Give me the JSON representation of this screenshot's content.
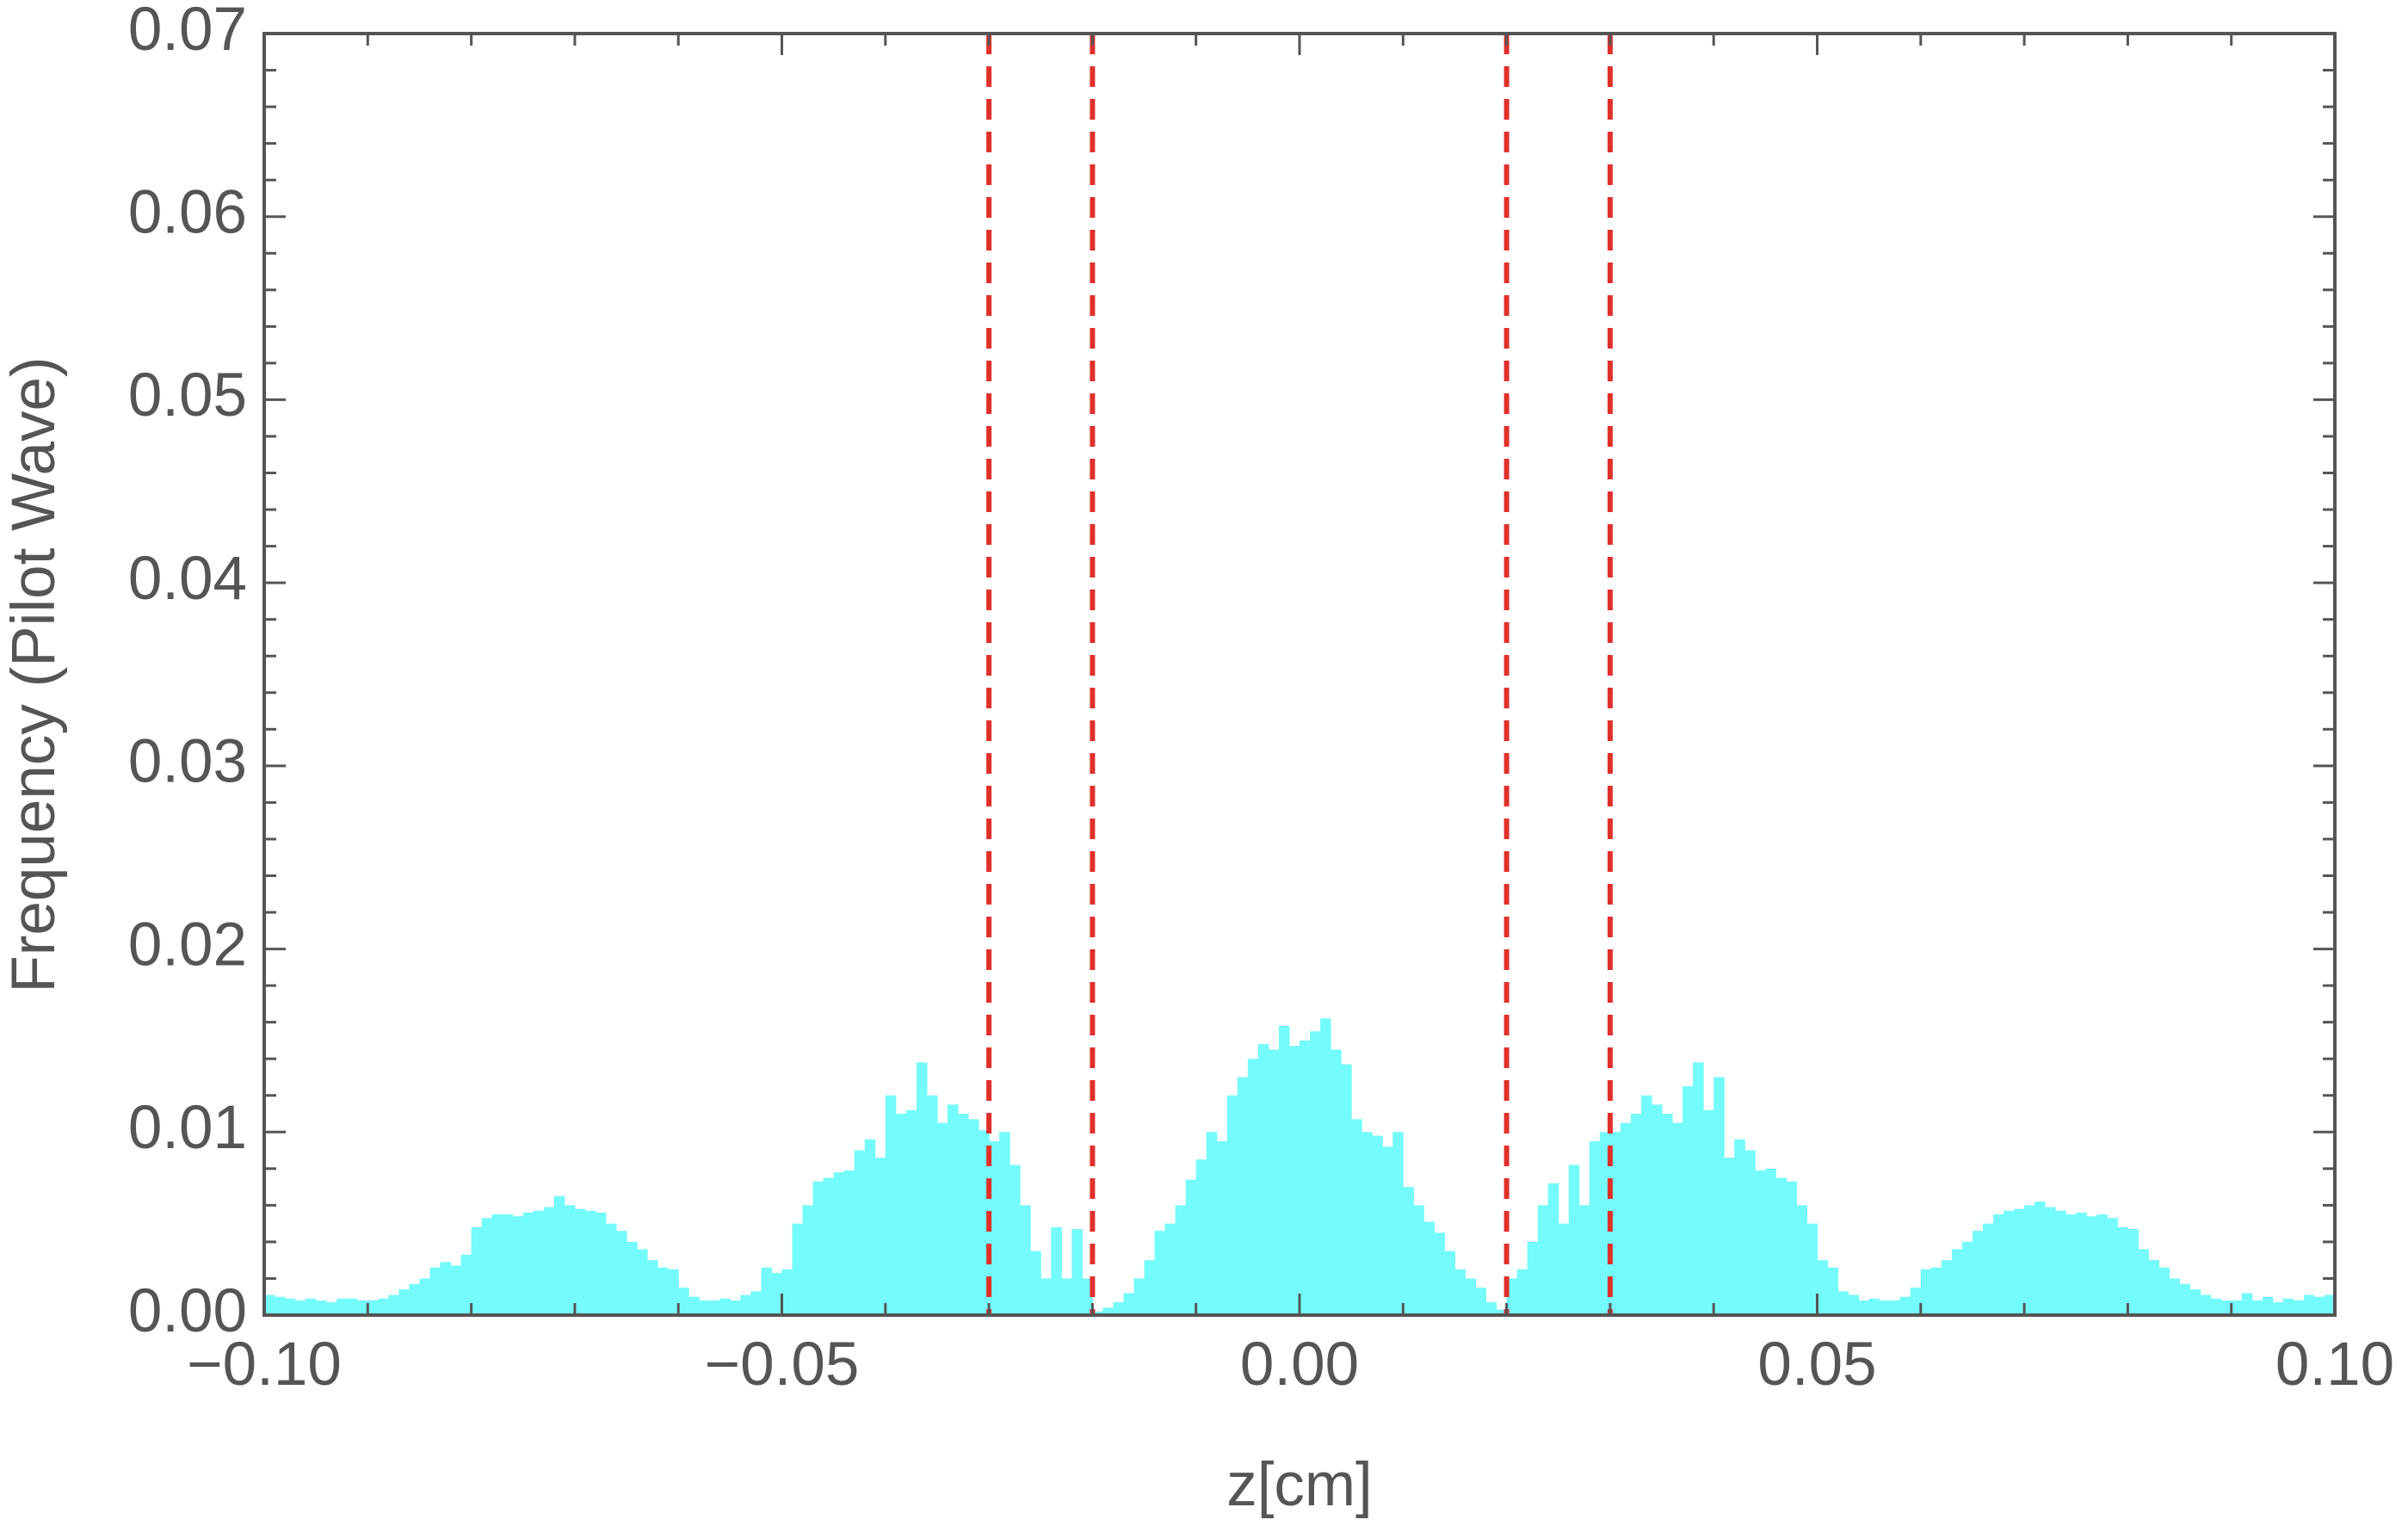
{
  "chart_data": {
    "type": "histogram",
    "xlabel": "z[cm]",
    "ylabel": "Frequency (Pilot Wave)",
    "color": "#74fbfc",
    "bins": [
      -0.1,
      -0.099,
      -0.098,
      -0.097,
      -0.096,
      -0.095,
      -0.094,
      -0.093,
      -0.092,
      -0.091,
      -0.09,
      -0.089,
      -0.088,
      -0.087,
      -0.086,
      -0.085,
      -0.084,
      -0.083,
      -0.082,
      -0.081,
      -0.08,
      -0.079,
      -0.078,
      -0.077,
      -0.076,
      -0.075,
      -0.074,
      -0.073,
      -0.072,
      -0.071,
      -0.07,
      -0.069,
      -0.068,
      -0.067,
      -0.066,
      -0.065,
      -0.064,
      -0.063,
      -0.062,
      -0.061,
      -0.06,
      -0.059,
      -0.058,
      -0.057,
      -0.056,
      -0.055,
      -0.054,
      -0.053,
      -0.052,
      -0.051,
      -0.05,
      -0.049,
      -0.048,
      -0.047,
      -0.046,
      -0.045,
      -0.044,
      -0.043,
      -0.042,
      -0.041,
      -0.04,
      -0.039,
      -0.038,
      -0.037,
      -0.036,
      -0.035,
      -0.034,
      -0.033,
      -0.032,
      -0.031,
      -0.03,
      -0.029,
      -0.028,
      -0.027,
      -0.026,
      -0.025,
      -0.024,
      -0.023,
      -0.022,
      -0.021,
      -0.02,
      -0.019,
      -0.018,
      -0.017,
      -0.016,
      -0.015,
      -0.014,
      -0.013,
      -0.012,
      -0.011,
      -0.01,
      -0.009,
      -0.008,
      -0.007,
      -0.006,
      -0.005,
      -0.004,
      -0.003,
      -0.002,
      -0.001,
      0,
      0.001,
      0.002,
      0.003,
      0.004,
      0.005,
      0.006,
      0.007,
      0.008,
      0.009,
      0.01,
      0.011,
      0.012,
      0.013,
      0.014,
      0.015,
      0.016,
      0.017,
      0.018,
      0.019,
      0.02,
      0.021,
      0.022,
      0.023,
      0.024,
      0.025,
      0.026,
      0.027,
      0.028,
      0.029,
      0.03,
      0.031,
      0.032,
      0.033,
      0.034,
      0.035,
      0.036,
      0.037,
      0.038,
      0.039,
      0.04,
      0.041,
      0.042,
      0.043,
      0.044,
      0.045,
      0.046,
      0.047,
      0.048,
      0.049,
      0.05,
      0.051,
      0.052,
      0.053,
      0.054,
      0.055,
      0.056,
      0.057,
      0.058,
      0.059,
      0.06,
      0.061,
      0.062,
      0.063,
      0.064,
      0.065,
      0.066,
      0.067,
      0.068,
      0.069,
      0.07,
      0.071,
      0.072,
      0.073,
      0.074,
      0.075,
      0.076,
      0.077,
      0.078,
      0.079,
      0.08,
      0.081,
      0.082,
      0.083,
      0.084,
      0.085,
      0.086,
      0.087,
      0.088,
      0.089,
      0.09,
      0.091,
      0.092,
      0.093,
      0.094,
      0.095,
      0.096,
      0.097,
      0.098,
      0.099,
      0.1
    ],
    "values": [
      0.0011,
      0.001,
      0.0009,
      0.0008,
      0.0009,
      0.0008,
      0.0007,
      0.0009,
      0.0009,
      0.0008,
      0.0008,
      0.0009,
      0.0011,
      0.0014,
      0.0017,
      0.002,
      0.0026,
      0.0029,
      0.0027,
      0.0033,
      0.0048,
      0.0053,
      0.0055,
      0.0055,
      0.0054,
      0.0056,
      0.0057,
      0.0059,
      0.0065,
      0.006,
      0.0058,
      0.0057,
      0.0056,
      0.005,
      0.0046,
      0.004,
      0.0036,
      0.003,
      0.0026,
      0.0025,
      0.0015,
      0.001,
      0.0008,
      0.0008,
      0.0009,
      0.0008,
      0.0011,
      0.0013,
      0.0026,
      0.0023,
      0.0025,
      0.005,
      0.006,
      0.0073,
      0.0075,
      0.0078,
      0.0079,
      0.009,
      0.0096,
      0.0086,
      0.012,
      0.011,
      0.0112,
      0.0138,
      0.012,
      0.0105,
      0.0115,
      0.011,
      0.0107,
      0.0101,
      0.0095,
      0.01,
      0.0082,
      0.006,
      0.0035,
      0.002,
      0.0048,
      0.002,
      0.0047,
      0.002,
      0.0002,
      0.0004,
      0.0007,
      0.0012,
      0.002,
      0.003,
      0.0046,
      0.005,
      0.006,
      0.0074,
      0.0085,
      0.01,
      0.0095,
      0.012,
      0.013,
      0.014,
      0.0148,
      0.0145,
      0.0158,
      0.0147,
      0.015,
      0.0155,
      0.0162,
      0.0145,
      0.0137,
      0.0107,
      0.01,
      0.0098,
      0.0092,
      0.01,
      0.007,
      0.006,
      0.0051,
      0.0045,
      0.0035,
      0.0025,
      0.002,
      0.0015,
      0.0007,
      0.0003,
      0.002,
      0.0025,
      0.004,
      0.006,
      0.0072,
      0.005,
      0.0082,
      0.006,
      0.0095,
      0.01,
      0.01,
      0.0105,
      0.011,
      0.012,
      0.0115,
      0.011,
      0.0105,
      0.0125,
      0.0138,
      0.0112,
      0.013,
      0.0086,
      0.0096,
      0.009,
      0.0079,
      0.008,
      0.0075,
      0.0073,
      0.006,
      0.005,
      0.003,
      0.0026,
      0.0013,
      0.0011,
      0.0008,
      0.0009,
      0.0008,
      0.0008,
      0.001,
      0.0015,
      0.0025,
      0.0026,
      0.003,
      0.0036,
      0.004,
      0.0046,
      0.005,
      0.0055,
      0.0057,
      0.0058,
      0.006,
      0.0062,
      0.0059,
      0.0057,
      0.0055,
      0.0056,
      0.0054,
      0.0055,
      0.0053,
      0.0048,
      0.0047,
      0.0036,
      0.003,
      0.0026,
      0.002,
      0.0017,
      0.0014,
      0.0011,
      0.0009,
      0.0008,
      0.0008,
      0.0012,
      0.0008,
      0.001,
      0.0007,
      0.0009,
      0.0008,
      0.0011,
      0.001,
      0.0011
    ],
    "vlines": [
      -0.03,
      -0.02,
      0.02,
      0.03
    ],
    "vline_color": "#e0302a",
    "xlim": [
      -0.1,
      0.1
    ],
    "xticks": [
      {
        "value": -0.1,
        "label": "−0.10"
      },
      {
        "value": -0.05,
        "label": "−0.05"
      },
      {
        "value": 0,
        "label": "0.00"
      },
      {
        "value": 0.05,
        "label": "0.05"
      },
      {
        "value": 0.1,
        "label": "0.10"
      }
    ],
    "xminorticks": [
      -0.09,
      -0.08,
      -0.07,
      -0.06,
      -0.04,
      -0.03,
      -0.02,
      -0.01,
      0.01,
      0.02,
      0.03,
      0.04,
      0.06,
      0.07,
      0.08,
      0.09
    ],
    "ylim": [
      0,
      0.07
    ],
    "yticks": [
      {
        "value": 0,
        "label": "0.00"
      },
      {
        "value": 0.01,
        "label": "0.01"
      },
      {
        "value": 0.02,
        "label": "0.02"
      },
      {
        "value": 0.03,
        "label": "0.03"
      },
      {
        "value": 0.04,
        "label": "0.04"
      },
      {
        "value": 0.05,
        "label": "0.05"
      },
      {
        "value": 0.06,
        "label": "0.06"
      },
      {
        "value": 0.07,
        "label": "0.07"
      }
    ],
    "yminorticks": [
      0.002,
      0.004,
      0.006,
      0.008,
      0.012,
      0.014,
      0.016,
      0.018,
      0.022,
      0.024,
      0.026,
      0.028,
      0.032,
      0.034,
      0.036,
      0.038,
      0.042,
      0.044,
      0.046,
      0.048,
      0.052,
      0.054,
      0.056,
      0.058,
      0.062,
      0.064,
      0.066,
      0.068
    ]
  }
}
